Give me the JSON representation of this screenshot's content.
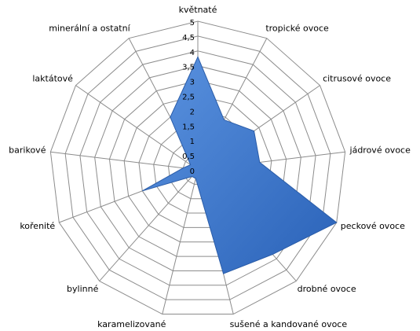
{
  "chart_data": {
    "type": "radar",
    "categories": [
      "květnaté",
      "tropické ovoce",
      "citrusové ovoce",
      "jádrové ovoce",
      "peckové ovoce",
      "drobné ovoce",
      "sušené a kandované ovoce",
      "karamelizované",
      "bylinné",
      "kořenité",
      "barikové",
      "laktátové",
      "minerální a ostatní"
    ],
    "values": [
      3.8,
      1.9,
      2.3,
      2.1,
      5,
      3.8,
      3.6,
      0.3,
      0.3,
      2,
      0.5,
      0.3,
      2
    ],
    "color": "#3a78d0",
    "ylim": [
      0,
      5
    ],
    "yticks": [
      0,
      {
        "value": 0.5,
        "label": "0,5"
      },
      1,
      {
        "value": 1.5,
        "label": "1,5"
      },
      2,
      {
        "value": 2.5,
        "label": "2,5"
      },
      3,
      {
        "value": 3.5,
        "label": "3,5"
      },
      4,
      {
        "value": 4.5,
        "label": "4,5"
      },
      5
    ],
    "grid": true
  }
}
